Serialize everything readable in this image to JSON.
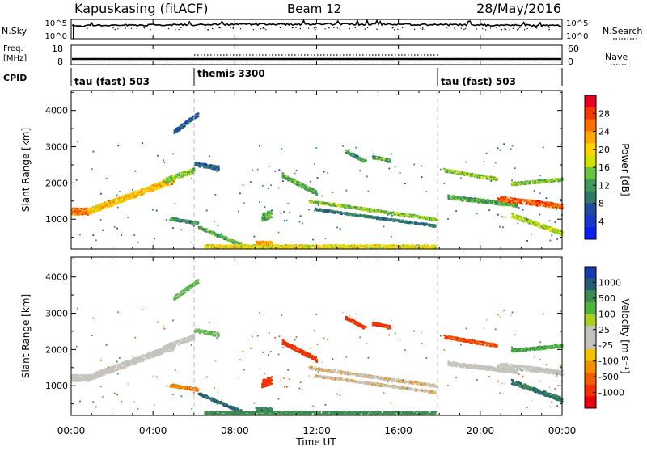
{
  "header": {
    "station": "Kapuskasing (fitACF)",
    "beam": "Beam 12",
    "date": "28/May/2016"
  },
  "strips": {
    "nsky_label": "N.Sky",
    "nsky_ticks": [
      "10^5",
      "10^0"
    ],
    "nsearch_label": "N.Search",
    "freq_label_top": "Freq.",
    "freq_label_bottom": "[MHz]",
    "freq_ticks": [
      "18",
      "8"
    ],
    "nave_label": "Nave",
    "nave_ticks": [
      "60",
      "0"
    ],
    "cpid_label": "CPID",
    "cpid_segments": [
      {
        "label": "tau (fast) 503",
        "start_hour": 0,
        "end_hour": 6
      },
      {
        "label": "themis 3300",
        "start_hour": 6,
        "end_hour": 18
      },
      {
        "label": "tau (fast) 503",
        "start_hour": 18,
        "end_hour": 24
      }
    ]
  },
  "colorbars": {
    "power": {
      "label": "Power [dB]",
      "ticks": [
        "28",
        "24",
        "20",
        "16",
        "12",
        "8",
        "4"
      ],
      "colors": [
        "#e8001c",
        "#f23a00",
        "#ff7000",
        "#ffa800",
        "#ffd400",
        "#cfe100",
        "#66c640",
        "#3f9a5a",
        "#2f7a66",
        "#234a9c",
        "#1838d0",
        "#0d1fef"
      ]
    },
    "velocity": {
      "label": "Velocity [m s⁻¹]",
      "ticks": [
        "1000",
        "500",
        "100",
        "25",
        "-25",
        "-100",
        "-500",
        "-1000"
      ],
      "colors": [
        "#1a3aa8",
        "#245c78",
        "#3b8a50",
        "#4fb53a",
        "#a8d020",
        "#c4c4bc",
        "#c4c4bc",
        "#f2c200",
        "#f09000",
        "#f06000",
        "#f03000",
        "#e80010"
      ]
    }
  },
  "chart_data": {
    "type": "heatmap",
    "x_label": "Time UT",
    "x_ticks": [
      "00:00",
      "04:00",
      "08:00",
      "12:00",
      "16:00",
      "20:00",
      "00:00"
    ],
    "x_range_hours": [
      0,
      24
    ],
    "y_label": "Slant Range [km]",
    "y_ticks": [
      1000,
      2000,
      3000,
      4000
    ],
    "y_range": [
      180,
      4550
    ],
    "panels": [
      "power",
      "velocity"
    ],
    "echo_bands": [
      {
        "t0": 0.0,
        "t1": 0.8,
        "r0": 1260,
        "r1": 1260,
        "w": 200,
        "p": 24,
        "v": -10
      },
      {
        "t0": 0.8,
        "t1": 5.0,
        "r0": 1260,
        "r1": 2130,
        "w": 180,
        "p": 20,
        "v": -10
      },
      {
        "t0": 4.5,
        "t1": 6.0,
        "r0": 2100,
        "r1": 2400,
        "w": 150,
        "p": 14,
        "v": -15
      },
      {
        "t0": 6.0,
        "t1": 7.2,
        "r0": 2560,
        "r1": 2450,
        "w": 120,
        "p": 6,
        "v": 30
      },
      {
        "t0": 5.0,
        "t1": 6.2,
        "r0": 3450,
        "r1": 3950,
        "w": 120,
        "p": 6,
        "v": 30
      },
      {
        "t0": 4.8,
        "t1": 6.2,
        "r0": 1060,
        "r1": 930,
        "w": 100,
        "p": 10,
        "v": -40
      },
      {
        "t0": 6.2,
        "t1": 8.3,
        "r0": 820,
        "r1": 330,
        "w": 90,
        "p": 12,
        "v": 200
      },
      {
        "t0": 6.5,
        "t1": 17.8,
        "r0": 300,
        "r1": 300,
        "w": 110,
        "p": 18,
        "v": 60
      },
      {
        "t0": 9.0,
        "t1": 9.8,
        "r0": 400,
        "r1": 400,
        "w": 100,
        "p": 22,
        "v": 130
      },
      {
        "t0": 10.3,
        "t1": 12.0,
        "r0": 2250,
        "r1": 1750,
        "w": 130,
        "p": 12,
        "v": -300
      },
      {
        "t0": 11.6,
        "t1": 17.9,
        "r0": 1540,
        "r1": 1030,
        "w": 90,
        "p": 14,
        "v": -20
      },
      {
        "t0": 11.9,
        "t1": 17.8,
        "r0": 1310,
        "r1": 850,
        "w": 70,
        "p": 8,
        "v": -20
      },
      {
        "t0": 13.4,
        "t1": 14.4,
        "r0": 2920,
        "r1": 2620,
        "w": 110,
        "p": 10,
        "v": -350
      },
      {
        "t0": 14.7,
        "t1": 15.6,
        "r0": 2760,
        "r1": 2660,
        "w": 110,
        "p": 12,
        "v": -400
      },
      {
        "t0": 9.3,
        "t1": 9.8,
        "r0": 1100,
        "r1": 1200,
        "w": 220,
        "p": 12,
        "v": -300
      },
      {
        "t0": 18.2,
        "t1": 20.8,
        "r0": 2400,
        "r1": 2150,
        "w": 110,
        "p": 14,
        "v": -150
      },
      {
        "t0": 18.4,
        "t1": 21.8,
        "r0": 1650,
        "r1": 1430,
        "w": 120,
        "p": 12,
        "v": 0
      },
      {
        "t0": 20.8,
        "t1": 24.0,
        "r0": 1620,
        "r1": 1400,
        "w": 150,
        "p": 26,
        "v": 0
      },
      {
        "t0": 21.5,
        "t1": 24.0,
        "r0": 2020,
        "r1": 2150,
        "w": 110,
        "p": 14,
        "v": 40
      },
      {
        "t0": 21.5,
        "t1": 24.0,
        "r0": 1150,
        "r1": 650,
        "w": 130,
        "p": 16,
        "v": 150
      }
    ]
  }
}
